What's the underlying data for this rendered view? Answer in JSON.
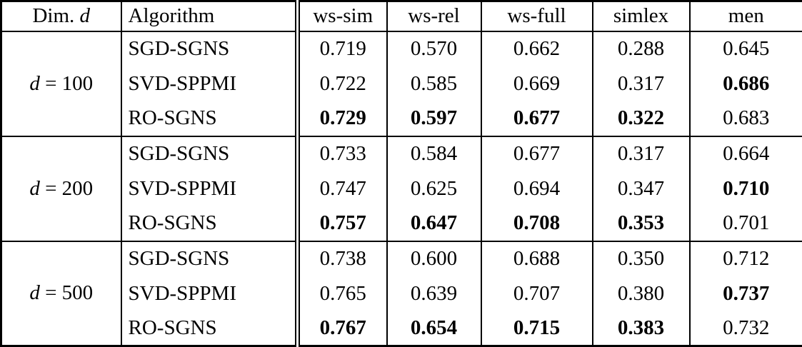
{
  "table": {
    "header": {
      "dim_label": "Dim.",
      "dim_var": "d",
      "algorithm": "Algorithm",
      "metrics": [
        "ws-sim",
        "ws-rel",
        "ws-full",
        "simlex",
        "men"
      ]
    },
    "groups": [
      {
        "dim_var": "d",
        "dim_rest": "= 100",
        "rows": [
          {
            "algorithm": "SGD-SGNS",
            "values": [
              "0.719",
              "0.570",
              "0.662",
              "0.288",
              "0.645"
            ],
            "bold": [
              false,
              false,
              false,
              false,
              false
            ]
          },
          {
            "algorithm": "SVD-SPPMI",
            "values": [
              "0.722",
              "0.585",
              "0.669",
              "0.317",
              "0.686"
            ],
            "bold": [
              false,
              false,
              false,
              false,
              true
            ]
          },
          {
            "algorithm": "RO-SGNS",
            "values": [
              "0.729",
              "0.597",
              "0.677",
              "0.322",
              "0.683"
            ],
            "bold": [
              true,
              true,
              true,
              true,
              false
            ]
          }
        ]
      },
      {
        "dim_var": "d",
        "dim_rest": "= 200",
        "rows": [
          {
            "algorithm": "SGD-SGNS",
            "values": [
              "0.733",
              "0.584",
              "0.677",
              "0.317",
              "0.664"
            ],
            "bold": [
              false,
              false,
              false,
              false,
              false
            ]
          },
          {
            "algorithm": "SVD-SPPMI",
            "values": [
              "0.747",
              "0.625",
              "0.694",
              "0.347",
              "0.710"
            ],
            "bold": [
              false,
              false,
              false,
              false,
              true
            ]
          },
          {
            "algorithm": "RO-SGNS",
            "values": [
              "0.757",
              "0.647",
              "0.708",
              "0.353",
              "0.701"
            ],
            "bold": [
              true,
              true,
              true,
              true,
              false
            ]
          }
        ]
      },
      {
        "dim_var": "d",
        "dim_rest": "= 500",
        "rows": [
          {
            "algorithm": "SGD-SGNS",
            "values": [
              "0.738",
              "0.600",
              "0.688",
              "0.350",
              "0.712"
            ],
            "bold": [
              false,
              false,
              false,
              false,
              false
            ]
          },
          {
            "algorithm": "SVD-SPPMI",
            "values": [
              "0.765",
              "0.639",
              "0.707",
              "0.380",
              "0.737"
            ],
            "bold": [
              false,
              false,
              false,
              false,
              true
            ]
          },
          {
            "algorithm": "RO-SGNS",
            "values": [
              "0.767",
              "0.654",
              "0.715",
              "0.383",
              "0.732"
            ],
            "bold": [
              true,
              true,
              true,
              true,
              false
            ]
          }
        ]
      }
    ]
  },
  "colors": {
    "border": "#000000",
    "text": "#000000",
    "background": "#ffffff"
  }
}
